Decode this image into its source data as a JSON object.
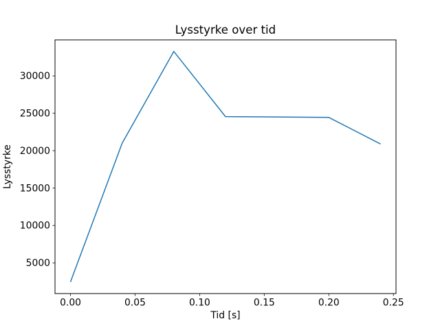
{
  "figure": {
    "background": "#ffffff"
  },
  "chart_data": {
    "type": "line",
    "title": "Lysstyrke over tid",
    "xlabel": "Tid [s]",
    "ylabel": "Lysstyrke",
    "x": [
      0.0,
      0.04,
      0.08,
      0.12,
      0.2,
      0.24
    ],
    "values": [
      2450,
      21000,
      33270,
      24560,
      24450,
      20900
    ],
    "xlim": [
      -0.012,
      0.252
    ],
    "ylim": [
      894,
      34816
    ],
    "xticks": [
      0.0,
      0.05,
      0.1,
      0.15,
      0.2,
      0.25
    ],
    "xtick_labels": [
      "0.00",
      "0.05",
      "0.10",
      "0.15",
      "0.20",
      "0.25"
    ],
    "yticks": [
      5000,
      10000,
      15000,
      20000,
      25000,
      30000
    ],
    "ytick_labels": [
      "5000",
      "10000",
      "15000",
      "20000",
      "25000",
      "30000"
    ],
    "line_color": "#1f77b4",
    "grid": false,
    "legend": "none"
  }
}
